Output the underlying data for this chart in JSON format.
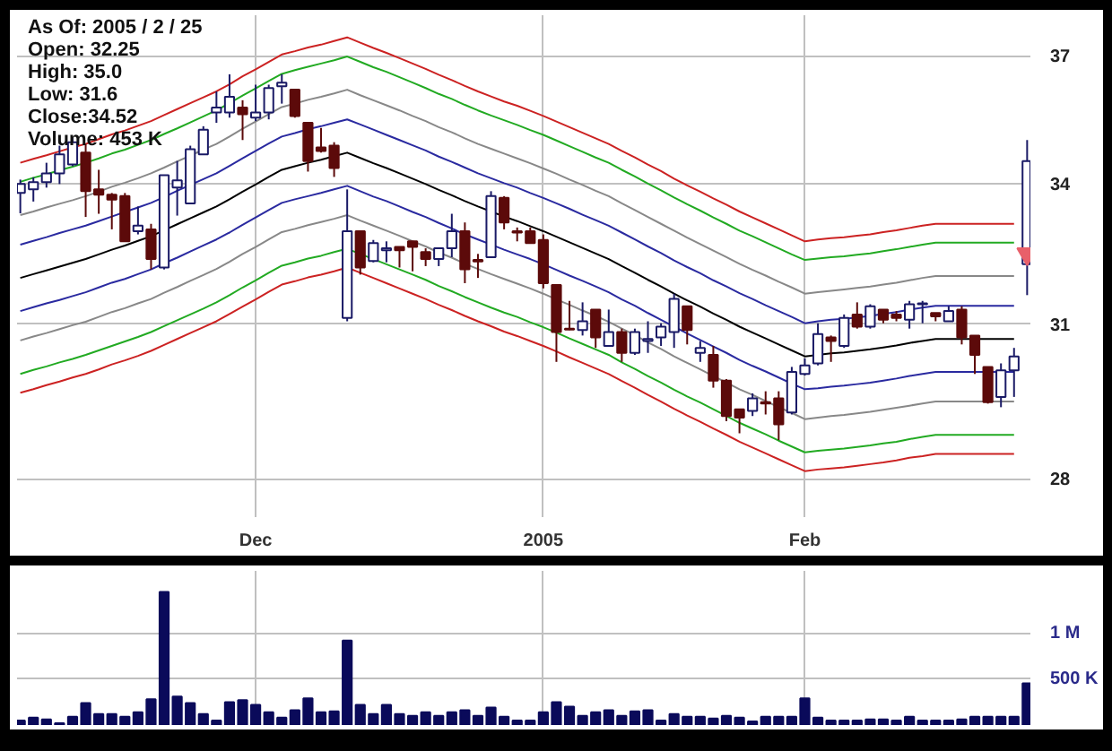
{
  "chart_data": [
    {
      "type": "candlestick",
      "annotations": [
        "As Of: 2005 / 2 / 25",
        "Open: 32.25",
        "High: 35.0",
        "Low: 31.6",
        "Close:34.52",
        "Volume: 453 K"
      ],
      "categories": [
        null,
        null,
        null,
        null,
        null,
        null,
        null,
        null,
        null,
        null,
        null,
        null,
        null,
        null,
        null,
        null,
        null,
        null,
        "Dec",
        null,
        null,
        null,
        null,
        null,
        null,
        null,
        null,
        null,
        null,
        null,
        null,
        null,
        null,
        null,
        null,
        null,
        null,
        null,
        null,
        null,
        "2005",
        null,
        null,
        null,
        null,
        null,
        null,
        null,
        null,
        null,
        null,
        null,
        null,
        null,
        null,
        null,
        null,
        null,
        null,
        null,
        "Feb",
        null,
        null,
        null,
        null,
        null,
        null,
        null,
        null,
        null,
        null,
        null,
        null,
        null,
        null,
        null,
        null,
        null
      ],
      "ohlc": [
        [
          33.8,
          34.1,
          33.35,
          34.0
        ],
        [
          33.88,
          34.15,
          33.61,
          34.04
        ],
        [
          34.04,
          34.48,
          33.92,
          34.24
        ],
        [
          34.24,
          34.87,
          34.0,
          34.67
        ],
        [
          34.44,
          35.07,
          34.4,
          34.95
        ],
        [
          34.71,
          34.91,
          33.27,
          33.84
        ],
        [
          33.88,
          34.32,
          33.34,
          33.76
        ],
        [
          33.76,
          33.8,
          33.0,
          33.65
        ],
        [
          33.73,
          33.8,
          32.74,
          32.74
        ],
        [
          32.96,
          33.5,
          32.89,
          33.08
        ],
        [
          33.0,
          33.12,
          32.14,
          32.36
        ],
        [
          32.18,
          34.2,
          32.14,
          34.2
        ],
        [
          33.92,
          34.52,
          33.3,
          34.08
        ],
        [
          33.57,
          34.87,
          33.57,
          34.79
        ],
        [
          34.67,
          35.32,
          34.67,
          35.24
        ],
        [
          35.64,
          36.14,
          35.4,
          35.76
        ],
        [
          35.64,
          36.55,
          35.52,
          36.01
        ],
        [
          35.76,
          35.93,
          35.0,
          35.6
        ],
        [
          35.52,
          36.3,
          35.44,
          35.64
        ],
        [
          35.64,
          36.3,
          35.48,
          36.22
        ],
        [
          36.26,
          36.55,
          35.85,
          36.35
        ],
        [
          36.18,
          36.18,
          35.52,
          35.56
        ],
        [
          35.4,
          35.4,
          34.28,
          34.52
        ],
        [
          34.83,
          35.28,
          34.71,
          34.75
        ],
        [
          34.87,
          34.95,
          34.16,
          34.36
        ],
        [
          31.13,
          33.88,
          31.06,
          32.96
        ],
        [
          32.96,
          32.96,
          32.03,
          32.18
        ],
        [
          32.32,
          32.77,
          32.29,
          32.7
        ],
        [
          32.55,
          32.74,
          32.29,
          32.59
        ],
        [
          32.62,
          32.62,
          32.18,
          32.55
        ],
        [
          32.74,
          32.74,
          32.1,
          32.62
        ],
        [
          32.51,
          32.59,
          32.21,
          32.36
        ],
        [
          32.36,
          32.59,
          32.21,
          32.59
        ],
        [
          32.59,
          33.34,
          32.4,
          32.96
        ],
        [
          32.96,
          33.15,
          31.85,
          32.14
        ],
        [
          32.34,
          32.47,
          31.96,
          32.31
        ],
        [
          32.4,
          33.84,
          32.4,
          33.73
        ],
        [
          33.69,
          33.73,
          33.0,
          33.15
        ],
        [
          32.96,
          33.04,
          32.74,
          32.93
        ],
        [
          32.96,
          33.04,
          32.7,
          32.7
        ],
        [
          32.77,
          32.89,
          31.74,
          31.85
        ],
        [
          31.81,
          31.81,
          30.24,
          30.84
        ],
        [
          30.91,
          31.48,
          30.88,
          30.89
        ],
        [
          30.88,
          31.45,
          30.77,
          31.06
        ],
        [
          31.3,
          31.3,
          30.52,
          30.73
        ],
        [
          30.56,
          31.3,
          30.56,
          30.84
        ],
        [
          30.84,
          30.91,
          30.24,
          30.42
        ],
        [
          30.42,
          30.91,
          30.38,
          30.84
        ],
        [
          30.66,
          31.06,
          30.42,
          30.7
        ],
        [
          30.73,
          31.02,
          30.56,
          30.95
        ],
        [
          30.84,
          31.63,
          30.52,
          31.52
        ],
        [
          31.37,
          31.37,
          30.59,
          30.88
        ],
        [
          30.42,
          30.66,
          30.24,
          30.52
        ],
        [
          30.38,
          30.56,
          29.73,
          29.87
        ],
        [
          29.87,
          29.9,
          29.08,
          29.18
        ],
        [
          29.31,
          29.31,
          28.85,
          29.15
        ],
        [
          29.28,
          29.62,
          29.18,
          29.52
        ],
        [
          29.45,
          29.66,
          29.21,
          29.42
        ],
        [
          29.52,
          29.66,
          28.72,
          29.02
        ],
        [
          29.25,
          30.14,
          29.21,
          30.04
        ],
        [
          30.0,
          30.31,
          29.97,
          30.17
        ],
        [
          30.21,
          31.02,
          30.17,
          30.8
        ],
        [
          30.73,
          30.77,
          30.24,
          30.66
        ],
        [
          30.56,
          31.2,
          30.52,
          31.13
        ],
        [
          31.2,
          31.45,
          30.91,
          30.95
        ],
        [
          30.95,
          31.41,
          30.91,
          31.37
        ],
        [
          31.3,
          31.3,
          31.02,
          31.09
        ],
        [
          31.2,
          31.27,
          31.06,
          31.13
        ],
        [
          31.09,
          31.48,
          30.91,
          31.41
        ],
        [
          31.41,
          31.48,
          31.02,
          31.43
        ],
        [
          31.23,
          31.23,
          31.06,
          31.16
        ],
        [
          31.06,
          31.37,
          31.06,
          31.27
        ],
        [
          31.3,
          31.37,
          30.59,
          30.73
        ],
        [
          30.77,
          30.77,
          30.0,
          30.38
        ],
        [
          30.14,
          30.14,
          29.42,
          29.45
        ],
        [
          29.55,
          30.21,
          29.35,
          30.07
        ],
        [
          30.07,
          30.52,
          29.55,
          30.35
        ],
        [
          32.25,
          35.0,
          31.6,
          34.52
        ]
      ],
      "colors": [
        "#ffffff",
        "#ffffff",
        "#ffffff",
        "#ffffff",
        "#ffffff",
        "#5c0a0a",
        "#5c0a0a",
        "#5c0a0a",
        "#5c0a0a",
        "#ffffff",
        "#5c0a0a",
        "#ffffff",
        "#ffffff",
        "#ffffff",
        "#ffffff",
        "#ffffff",
        "#ffffff",
        "#5c0a0a",
        "#ffffff",
        "#ffffff",
        "#ffffff",
        "#5c0a0a",
        "#5c0a0a",
        "#5c0a0a",
        "#5c0a0a",
        "#ffffff",
        "#5c0a0a",
        "#ffffff",
        "#ffffff",
        "#5c0a0a",
        "#5c0a0a",
        "#5c0a0a",
        "#ffffff",
        "#ffffff",
        "#5c0a0a",
        "#5c0a0a",
        "#ffffff",
        "#5c0a0a",
        "#5c0a0a",
        "#5c0a0a",
        "#5c0a0a",
        "#5c0a0a",
        "#5c0a0a",
        "#ffffff",
        "#5c0a0a",
        "#ffffff",
        "#5c0a0a",
        "#ffffff",
        "#ffffff",
        "#ffffff",
        "#ffffff",
        "#5c0a0a",
        "#ffffff",
        "#5c0a0a",
        "#5c0a0a",
        "#5c0a0a",
        "#ffffff",
        "#5c0a0a",
        "#5c0a0a",
        "#ffffff",
        "#ffffff",
        "#ffffff",
        "#5c0a0a",
        "#ffffff",
        "#5c0a0a",
        "#ffffff",
        "#5c0a0a",
        "#5c0a0a",
        "#ffffff",
        "#ffffff",
        "#5c0a0a",
        "#ffffff",
        "#5c0a0a",
        "#5c0a0a",
        "#5c0a0a",
        "#ffffff",
        "#ffffff",
        "#ffffff"
      ],
      "series": [
        {
          "type": "line",
          "color": "#cc2222",
          "values": [
            34.48,
            34.57,
            34.65,
            34.74,
            34.83,
            34.91,
            35.02,
            35.13,
            35.22,
            35.33,
            35.44,
            35.58,
            35.72,
            35.86,
            36.0,
            36.14,
            36.31,
            36.5,
            36.67,
            36.85,
            37.03,
            37.11,
            37.2,
            37.27,
            37.36,
            37.45,
            37.32,
            37.19,
            37.07,
            36.94,
            36.81,
            36.68,
            36.54,
            36.41,
            36.27,
            36.14,
            36.02,
            35.9,
            35.8,
            35.68,
            35.56,
            35.43,
            35.3,
            35.17,
            35.04,
            34.91,
            34.75,
            34.6,
            34.44,
            34.29,
            34.12,
            33.97,
            33.83,
            33.68,
            33.54,
            33.39,
            33.26,
            33.13,
            33.0,
            32.87,
            32.74,
            32.78,
            32.81,
            32.83,
            32.86,
            32.89,
            32.94,
            32.98,
            33.03,
            33.08,
            33.12,
            33.12,
            33.12,
            33.12,
            33.12,
            33.12,
            33.12,
            null
          ]
        },
        {
          "type": "line",
          "color": "#22aa22",
          "values": [
            34.05,
            34.14,
            34.22,
            34.31,
            34.39,
            34.48,
            34.58,
            34.69,
            34.78,
            34.89,
            35.0,
            35.14,
            35.27,
            35.41,
            35.55,
            35.69,
            35.86,
            36.04,
            36.21,
            36.39,
            36.56,
            36.65,
            36.73,
            36.81,
            36.89,
            36.98,
            36.85,
            36.72,
            36.61,
            36.48,
            36.35,
            36.22,
            36.08,
            35.96,
            35.82,
            35.69,
            35.57,
            35.46,
            35.35,
            35.23,
            35.12,
            34.99,
            34.86,
            34.73,
            34.6,
            34.48,
            34.32,
            34.17,
            34.01,
            33.86,
            33.7,
            33.55,
            33.41,
            33.26,
            33.12,
            32.97,
            32.85,
            32.72,
            32.59,
            32.46,
            32.34,
            32.37,
            32.4,
            32.42,
            32.45,
            32.48,
            32.53,
            32.57,
            32.62,
            32.67,
            32.71,
            32.71,
            32.71,
            32.71,
            32.71,
            32.71,
            32.71,
            null
          ]
        },
        {
          "type": "line",
          "color": "#888888",
          "values": [
            33.31,
            33.39,
            33.48,
            33.56,
            33.64,
            33.73,
            33.83,
            33.94,
            34.03,
            34.13,
            34.24,
            34.37,
            34.51,
            34.64,
            34.78,
            34.91,
            35.08,
            35.26,
            35.43,
            35.6,
            35.77,
            35.85,
            35.94,
            36.01,
            36.09,
            36.18,
            36.05,
            35.93,
            35.81,
            35.69,
            35.56,
            35.44,
            35.3,
            35.18,
            35.04,
            34.91,
            34.8,
            34.69,
            34.58,
            34.47,
            34.35,
            34.23,
            34.1,
            33.98,
            33.85,
            33.73,
            33.57,
            33.42,
            33.27,
            33.12,
            32.97,
            32.82,
            32.68,
            32.54,
            32.4,
            32.26,
            32.13,
            32.01,
            31.88,
            31.76,
            31.63,
            31.66,
            31.69,
            31.72,
            31.75,
            31.78,
            31.82,
            31.86,
            31.91,
            31.96,
            32.0,
            32.0,
            32.0,
            32.0,
            32.0,
            32.0,
            32.0,
            null
          ]
        },
        {
          "type": "line",
          "color": "#2a2aa0",
          "values": [
            32.67,
            32.75,
            32.83,
            32.92,
            33.0,
            33.08,
            33.18,
            33.28,
            33.38,
            33.48,
            33.58,
            33.71,
            33.85,
            33.98,
            34.11,
            34.24,
            34.41,
            34.58,
            34.75,
            34.92,
            35.08,
            35.16,
            35.25,
            35.32,
            35.4,
            35.48,
            35.36,
            35.24,
            35.12,
            35.0,
            34.88,
            34.76,
            34.62,
            34.5,
            34.37,
            34.24,
            34.13,
            34.02,
            33.92,
            33.8,
            33.69,
            33.57,
            33.45,
            33.32,
            33.2,
            33.08,
            32.93,
            32.78,
            32.63,
            32.49,
            32.33,
            32.19,
            32.06,
            31.91,
            31.78,
            31.64,
            31.52,
            31.39,
            31.27,
            31.15,
            31.02,
            31.06,
            31.09,
            31.11,
            31.14,
            31.17,
            31.21,
            31.25,
            31.3,
            31.34,
            31.38,
            31.38,
            31.38,
            31.38,
            31.38,
            31.38,
            31.38,
            null
          ]
        },
        {
          "type": "line",
          "color": "#000000",
          "values": [
            31.96,
            32.04,
            32.12,
            32.2,
            32.28,
            32.36,
            32.46,
            32.56,
            32.65,
            32.75,
            32.85,
            32.98,
            33.11,
            33.24,
            33.37,
            33.5,
            33.66,
            33.83,
            33.99,
            34.16,
            34.32,
            34.4,
            34.48,
            34.55,
            34.63,
            34.71,
            34.59,
            34.47,
            34.36,
            34.24,
            34.12,
            34.0,
            33.87,
            33.75,
            33.62,
            33.5,
            33.39,
            33.28,
            33.18,
            33.07,
            32.96,
            32.84,
            32.72,
            32.6,
            32.48,
            32.36,
            32.21,
            32.07,
            31.92,
            31.78,
            31.63,
            31.49,
            31.36,
            31.22,
            31.09,
            30.95,
            30.83,
            30.71,
            30.59,
            30.47,
            30.35,
            30.38,
            30.41,
            30.43,
            30.46,
            30.49,
            30.53,
            30.57,
            30.62,
            30.66,
            30.7,
            30.7,
            30.7,
            30.7,
            30.7,
            30.7,
            30.7,
            null
          ]
        },
        {
          "type": "line",
          "color": "#2a2aa0",
          "values": [
            31.27,
            31.35,
            31.43,
            31.5,
            31.58,
            31.66,
            31.76,
            31.86,
            31.94,
            32.04,
            32.14,
            32.27,
            32.39,
            32.52,
            32.65,
            32.78,
            32.93,
            33.1,
            33.26,
            33.42,
            33.58,
            33.66,
            33.73,
            33.8,
            33.88,
            33.96,
            33.84,
            33.72,
            33.62,
            33.5,
            33.38,
            33.27,
            33.14,
            33.02,
            32.89,
            32.78,
            32.67,
            32.56,
            32.46,
            32.36,
            32.25,
            32.13,
            32.01,
            31.9,
            31.78,
            31.66,
            31.51,
            31.38,
            31.23,
            31.09,
            30.95,
            30.81,
            30.68,
            30.55,
            30.42,
            30.28,
            30.16,
            30.05,
            29.93,
            29.81,
            29.7,
            29.72,
            29.75,
            29.77,
            29.8,
            29.83,
            29.87,
            29.91,
            29.96,
            30.0,
            30.04,
            30.04,
            30.04,
            30.04,
            30.04,
            30.04,
            30.04,
            null
          ]
        },
        {
          "type": "line",
          "color": "#888888",
          "values": [
            30.67,
            30.75,
            30.82,
            30.9,
            30.98,
            31.05,
            31.15,
            31.25,
            31.33,
            31.43,
            31.52,
            31.65,
            31.77,
            31.9,
            32.02,
            32.15,
            32.3,
            32.47,
            32.62,
            32.78,
            32.94,
            33.01,
            33.09,
            33.16,
            33.23,
            33.31,
            33.19,
            33.08,
            32.97,
            32.86,
            32.74,
            32.63,
            32.5,
            32.39,
            32.26,
            32.15,
            32.04,
            31.94,
            31.84,
            31.74,
            31.63,
            31.51,
            31.4,
            31.28,
            31.17,
            31.05,
            30.91,
            30.78,
            30.63,
            30.5,
            30.35,
            30.22,
            30.09,
            29.96,
            29.83,
            29.7,
            29.59,
            29.47,
            29.35,
            29.24,
            29.12,
            29.15,
            29.18,
            29.2,
            29.23,
            29.26,
            29.3,
            29.34,
            29.38,
            29.42,
            29.46,
            29.46,
            29.46,
            29.46,
            29.46,
            29.46,
            29.46,
            null
          ]
        },
        {
          "type": "line",
          "color": "#22aa22",
          "values": [
            30.0,
            30.08,
            30.15,
            30.23,
            30.3,
            30.38,
            30.47,
            30.56,
            30.65,
            30.74,
            30.84,
            30.96,
            31.08,
            31.2,
            31.32,
            31.45,
            31.6,
            31.76,
            31.91,
            32.07,
            32.22,
            32.29,
            32.37,
            32.43,
            32.51,
            32.58,
            32.47,
            32.36,
            32.25,
            32.14,
            32.03,
            31.92,
            31.79,
            31.68,
            31.56,
            31.45,
            31.34,
            31.24,
            31.15,
            31.04,
            30.94,
            30.83,
            30.71,
            30.6,
            30.49,
            30.38,
            30.23,
            30.1,
            29.96,
            29.83,
            29.69,
            29.56,
            29.44,
            29.31,
            29.18,
            29.05,
            28.94,
            28.83,
            28.71,
            28.6,
            28.49,
            28.52,
            28.54,
            28.56,
            28.59,
            28.62,
            28.66,
            28.69,
            28.74,
            28.78,
            28.82,
            28.82,
            28.82,
            28.82,
            28.82,
            28.82,
            28.82,
            null
          ]
        },
        {
          "type": "line",
          "color": "#cc2222",
          "values": [
            29.63,
            29.7,
            29.78,
            29.85,
            29.93,
            30.0,
            30.09,
            30.19,
            30.27,
            30.36,
            30.46,
            30.58,
            30.7,
            30.82,
            30.94,
            31.06,
            31.21,
            31.36,
            31.51,
            31.67,
            31.82,
            31.89,
            31.97,
            32.03,
            32.1,
            32.18,
            32.07,
            31.96,
            31.85,
            31.74,
            31.63,
            31.52,
            31.4,
            31.29,
            31.17,
            31.06,
            30.96,
            30.85,
            30.76,
            30.66,
            30.56,
            30.45,
            30.33,
            30.22,
            30.11,
            30.0,
            29.86,
            29.73,
            29.59,
            29.46,
            29.32,
            29.19,
            29.07,
            28.94,
            28.82,
            28.69,
            28.58,
            28.47,
            28.36,
            28.25,
            28.14,
            28.17,
            28.19,
            28.21,
            28.24,
            28.27,
            28.3,
            28.34,
            28.39,
            28.42,
            28.46,
            28.46,
            28.46,
            28.46,
            28.46,
            28.46,
            28.46,
            null
          ]
        },
        {
          "type": "scatter",
          "color": "#e8606a",
          "marker": "triangle",
          "values": [
            null,
            null,
            null,
            null,
            null,
            null,
            null,
            null,
            null,
            null,
            null,
            null,
            null,
            null,
            null,
            null,
            null,
            null,
            null,
            null,
            null,
            null,
            null,
            null,
            null,
            null,
            null,
            null,
            null,
            null,
            null,
            null,
            null,
            null,
            null,
            null,
            null,
            null,
            null,
            null,
            null,
            null,
            null,
            null,
            null,
            null,
            null,
            null,
            null,
            null,
            null,
            null,
            null,
            null,
            null,
            null,
            null,
            null,
            null,
            null,
            null,
            null,
            null,
            null,
            null,
            null,
            null,
            null,
            null,
            null,
            null,
            null,
            null,
            null,
            null,
            null,
            null,
            32.47
          ]
        }
      ],
      "ylim": [
        27.3,
        38.0
      ],
      "yticks": [
        28,
        31,
        34,
        37
      ],
      "log": "y",
      "grid": true
    },
    {
      "type": "bar",
      "color": "#0a0a5a",
      "categories": [
        null,
        null,
        null,
        null,
        null,
        null,
        null,
        null,
        null,
        null,
        null,
        null,
        null,
        null,
        null,
        null,
        null,
        null,
        null,
        null,
        null,
        null,
        null,
        null,
        null,
        null,
        null,
        null,
        null,
        null,
        null,
        null,
        null,
        null,
        null,
        null,
        null,
        null,
        null,
        null,
        null,
        null,
        null,
        null,
        null,
        null,
        null,
        null,
        null,
        null,
        null,
        null,
        null,
        null,
        null,
        null,
        null,
        null,
        null,
        null,
        null,
        null,
        null,
        null,
        null,
        null,
        null,
        null,
        null,
        null,
        null,
        null,
        null,
        null,
        null,
        null,
        null,
        null
      ],
      "values": [
        50000,
        80000,
        60000,
        20000,
        90000,
        240000,
        120000,
        120000,
        90000,
        140000,
        280000,
        1450000,
        310000,
        240000,
        120000,
        50000,
        250000,
        270000,
        220000,
        140000,
        80000,
        160000,
        290000,
        140000,
        150000,
        920000,
        220000,
        120000,
        220000,
        120000,
        100000,
        140000,
        100000,
        140000,
        160000,
        100000,
        190000,
        90000,
        50000,
        50000,
        140000,
        250000,
        200000,
        100000,
        140000,
        160000,
        100000,
        150000,
        160000,
        50000,
        120000,
        90000,
        90000,
        70000,
        100000,
        80000,
        40000,
        90000,
        90000,
        90000,
        290000,
        80000,
        50000,
        50000,
        50000,
        60000,
        60000,
        50000,
        90000,
        50000,
        50000,
        50000,
        60000,
        90000,
        90000,
        90000,
        90000,
        453000
      ],
      "ylim": [
        0,
        1680000
      ],
      "yticks": [
        {
          "value": 500000,
          "label": "500 K"
        },
        {
          "value": 1000000,
          "label": "1 M"
        }
      ],
      "grid": true,
      "tick_labels": "y"
    }
  ]
}
